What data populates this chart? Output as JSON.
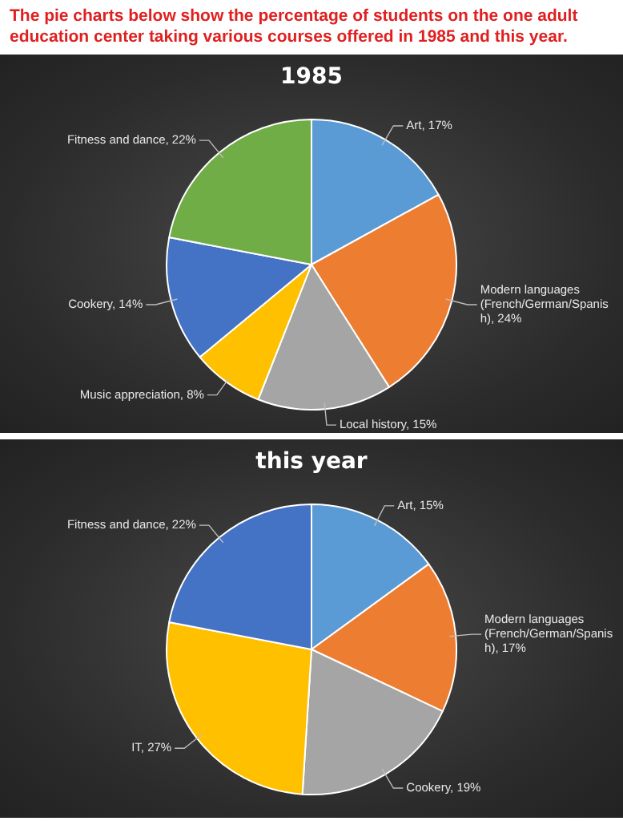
{
  "chart_data": [
    {
      "type": "pie",
      "title": "1985",
      "annotations": [
        "The pie charts below show the percentage of students on the one adult education center taking various courses offered in 1985 and this year."
      ],
      "categories": [
        "Art",
        "Modern languages (French/German/Spanish)",
        "Local history",
        "Music appreciation",
        "Cookery",
        "Fitness and dance"
      ],
      "values": [
        17,
        24,
        15,
        8,
        14,
        22
      ],
      "value_labels": [
        "17%",
        "24%",
        "15%",
        "8%",
        "14%",
        "22%"
      ],
      "colors": [
        "#5b9bd5",
        "#ed7d31",
        "#a5a5a5",
        "#ffc000",
        "#4472c4",
        "#70ad47"
      ],
      "legend": false
    },
    {
      "type": "pie",
      "title": "this year",
      "categories": [
        "Art",
        "Modern languages (French/German/Spanish)",
        "Cookery",
        "IT",
        "Fitness and dance"
      ],
      "values": [
        15,
        17,
        19,
        27,
        22
      ],
      "value_labels": [
        "15%",
        "17%",
        "19%",
        "27%",
        "22%"
      ],
      "colors": [
        "#5b9bd5",
        "#ed7d31",
        "#a5a5a5",
        "#ffc000",
        "#4472c4"
      ],
      "legend": false
    }
  ]
}
